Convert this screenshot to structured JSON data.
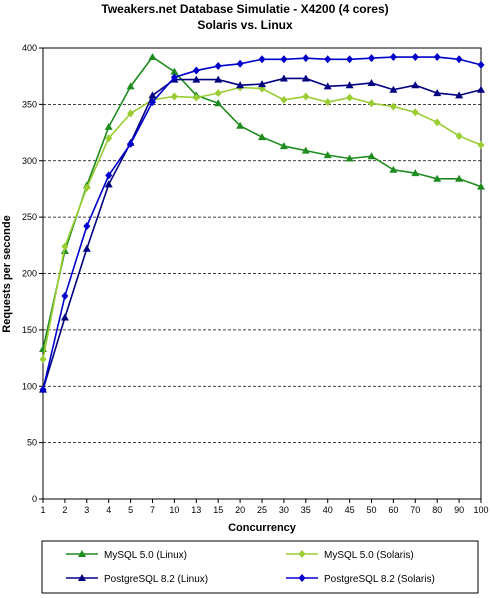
{
  "chart_data": {
    "type": "line",
    "title": "Tweakers.net Database Simulatie - X4200 (4 cores)",
    "subtitle": "Solaris vs. Linux",
    "xlabel": "Concurrency",
    "ylabel": "Requests per seconde",
    "ylim": [
      0,
      400
    ],
    "yticks": [
      0,
      50,
      100,
      150,
      200,
      250,
      300,
      350,
      400
    ],
    "grid": true,
    "legend_position": "bottom",
    "categories": [
      "1",
      "2",
      "3",
      "4",
      "5",
      "7",
      "10",
      "13",
      "15",
      "20",
      "25",
      "30",
      "35",
      "40",
      "45",
      "50",
      "60",
      "70",
      "80",
      "90",
      "100"
    ],
    "series": [
      {
        "name": "MySQL 5.0 (Linux)",
        "color": "#1e8c1e",
        "marker": "triangle",
        "values": [
          133,
          220,
          278,
          330,
          366,
          392,
          379,
          358,
          351,
          331,
          321,
          313,
          309,
          305,
          302,
          304,
          292,
          289,
          284,
          284,
          277
        ]
      },
      {
        "name": "MySQL 5.0 (Solaris)",
        "color": "#9acd32",
        "marker": "diamond",
        "values": [
          124,
          224,
          276,
          320,
          342,
          354,
          357,
          356,
          360,
          365,
          364,
          354,
          357,
          352,
          356,
          351,
          348,
          343,
          334,
          322,
          314
        ]
      },
      {
        "name": "PostgreSQL 8.2 (Linux)",
        "color": "#000080",
        "marker": "triangle",
        "values": [
          97,
          161,
          222,
          279,
          316,
          358,
          372,
          372,
          372,
          367,
          368,
          373,
          373,
          366,
          367,
          369,
          363,
          367,
          360,
          358,
          363
        ]
      },
      {
        "name": "PostgreSQL 8.2 (Solaris)",
        "color": "#0000cc",
        "marker": "diamond",
        "values": [
          97,
          180,
          242,
          287,
          315,
          352,
          374,
          380,
          384,
          386,
          390,
          390,
          391,
          390,
          390,
          391,
          392,
          392,
          392,
          390,
          385
        ]
      }
    ]
  }
}
